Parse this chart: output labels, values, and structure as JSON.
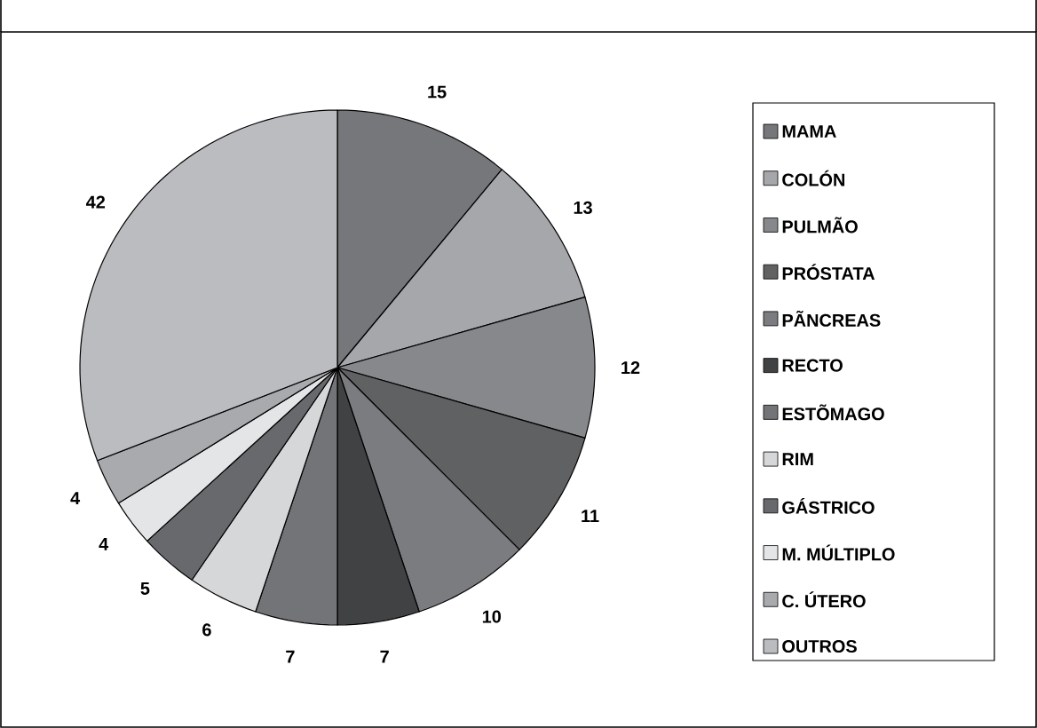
{
  "chart_data": {
    "type": "pie",
    "categories": [
      "MAMA",
      "COLÓN",
      "PULMÃO",
      "PRÓSTATA",
      "PÃNCREAS",
      "RECTO",
      "ESTÕMAGO",
      "RIM",
      "GÁSTRICO",
      "M. MÚLTIPLO",
      "C. ÚTERO",
      "OUTROS"
    ],
    "values": [
      15,
      13,
      12,
      11,
      10,
      7,
      7,
      6,
      5,
      4,
      4,
      42
    ],
    "colors": [
      "#76777b",
      "#a6a7aa",
      "#87888b",
      "#606163",
      "#7b7c80",
      "#414244",
      "#737477",
      "#d6d7d9",
      "#68696c",
      "#e4e5e7",
      "#a9aaad",
      "#bbbcbf"
    ],
    "data_labels": true,
    "legend": "right"
  }
}
